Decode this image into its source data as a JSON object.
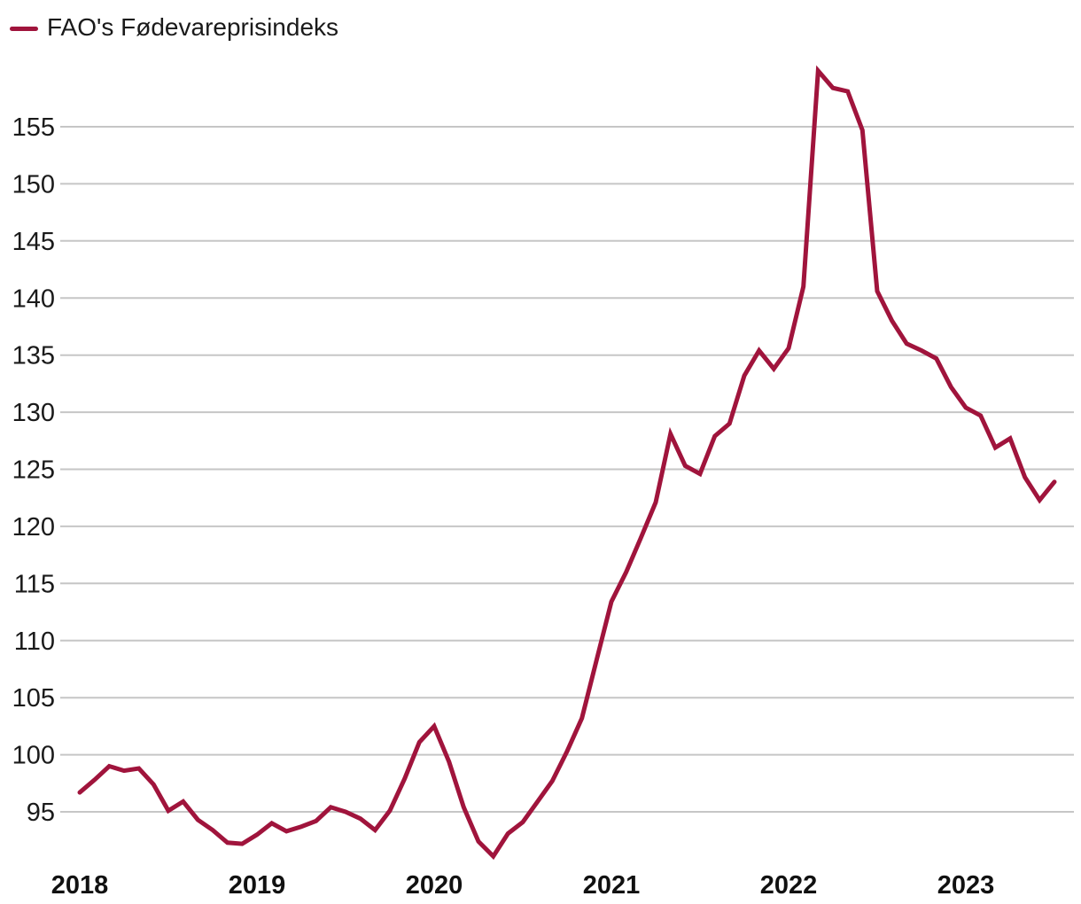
{
  "legend": {
    "label": "FAO's Fødevareprisindeks"
  },
  "colors": {
    "line": "#a0143c",
    "grid": "#c6c6c6",
    "text": "#1a1a1a"
  },
  "chart_data": {
    "type": "line",
    "title": "",
    "x_start": "2018-01",
    "x_end": "2023-07",
    "frequency": "monthly",
    "x_tick_labels": [
      "2018",
      "2019",
      "2020",
      "2021",
      "2022",
      "2023"
    ],
    "y_ticks": [
      95,
      100,
      105,
      110,
      115,
      120,
      125,
      130,
      135,
      140,
      145,
      150,
      155
    ],
    "ylim": [
      90,
      161.5
    ],
    "grid": "horizontal-only",
    "legend_position": "top-left",
    "series": [
      {
        "name": "FAO's Fødevareprisindeks",
        "values": [
          96.7,
          97.8,
          99.0,
          98.6,
          98.8,
          97.4,
          95.1,
          95.9,
          94.3,
          93.4,
          92.3,
          92.2,
          93.0,
          94.0,
          93.3,
          93.7,
          94.2,
          95.4,
          95.0,
          94.4,
          93.4,
          95.1,
          97.9,
          101.1,
          102.5,
          99.4,
          95.4,
          92.4,
          91.1,
          93.1,
          94.1,
          95.9,
          97.7,
          100.3,
          103.2,
          108.3,
          113.4,
          116.0,
          119.0,
          122.1,
          128.1,
          125.3,
          124.6,
          127.9,
          129.0,
          133.2,
          135.4,
          133.8,
          135.6,
          141.0,
          159.9,
          158.4,
          158.1,
          154.7,
          140.6,
          138.0,
          136.0,
          135.4,
          134.7,
          132.2,
          130.4,
          129.7,
          126.9,
          127.7,
          124.3,
          122.3,
          123.9
        ]
      }
    ]
  }
}
